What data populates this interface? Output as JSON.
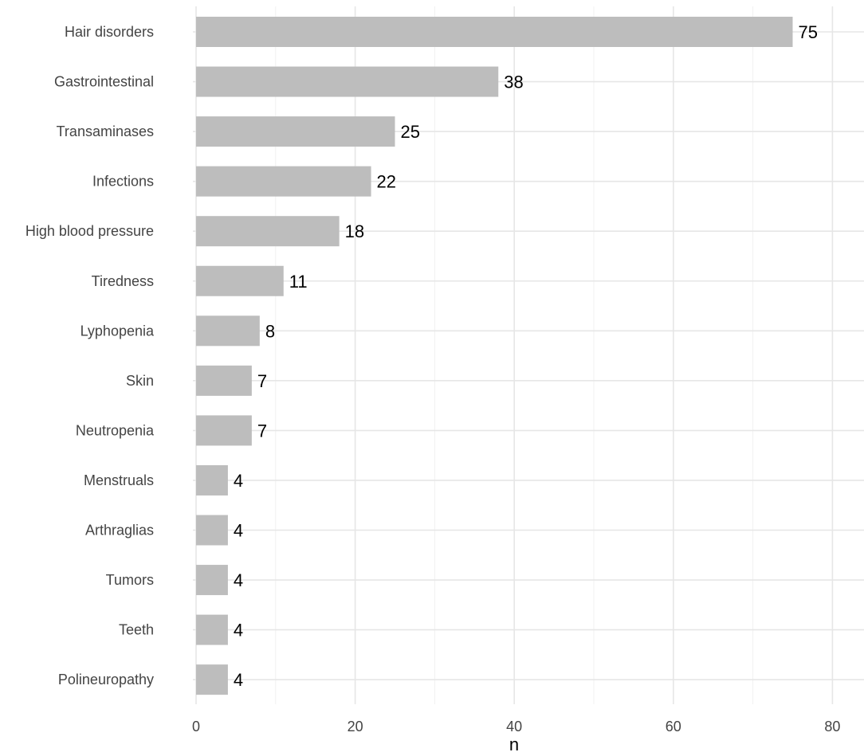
{
  "chart_data": {
    "type": "bar",
    "orientation": "horizontal",
    "categories": [
      "Hair disorders",
      "Gastrointestinal",
      "Transaminases",
      "Infections",
      "High blood pressure",
      "Tiredness",
      "Lyphopenia",
      "Skin",
      "Neutropenia",
      "Menstruals",
      "Arthraglias",
      "Tumors",
      "Teeth",
      "Polineuropathy"
    ],
    "values": [
      75,
      38,
      25,
      22,
      18,
      11,
      8,
      7,
      7,
      4,
      4,
      4,
      4,
      4
    ],
    "value_labels": [
      "75",
      "38",
      "25",
      "22",
      "18",
      "11",
      "8",
      "7",
      "7",
      "4",
      "4",
      "4",
      "4",
      "4"
    ],
    "title": "",
    "xlabel": "n",
    "ylabel": "",
    "xlim": [
      0,
      84
    ],
    "xticks": [
      0,
      20,
      40,
      60,
      80
    ],
    "xtick_labels": [
      "0",
      "20",
      "40",
      "60",
      "80"
    ],
    "grid": true,
    "legend": "none",
    "colors": {
      "bar": "#bdbdbd",
      "grid": "#e6e6e6",
      "text": "#444444"
    }
  }
}
